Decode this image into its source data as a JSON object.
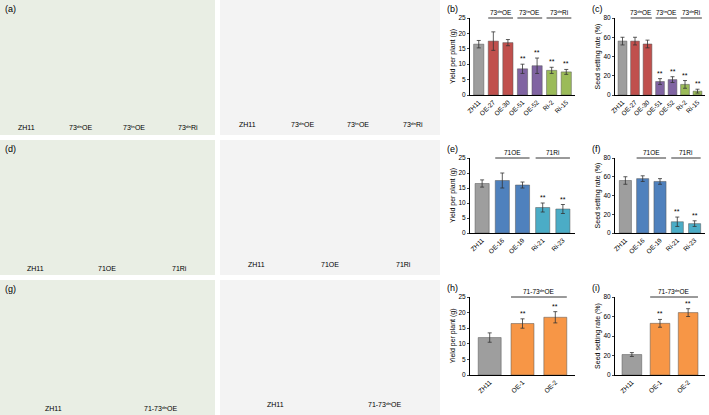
{
  "photos": [
    {
      "label": "(a)",
      "plants": [
        "ZH11",
        "73ᵈⁿOE",
        "73ᵗⁿOE",
        "73ᵈⁿRi"
      ],
      "panicles": [
        "ZH11",
        "73ᵈⁿOE",
        "73ᵗⁿOE",
        "73ᵈⁿRi"
      ]
    },
    {
      "label": "(d)",
      "plants": [
        "ZH11",
        "71OE",
        "71Ri"
      ],
      "panicles": [
        "ZH11",
        "71OE",
        "71Ri"
      ]
    },
    {
      "label": "(g)",
      "plants": [
        "ZH11",
        "71-73ᵈⁿOE"
      ],
      "panicles": [
        "ZH11",
        "71-73ᵈⁿOE"
      ]
    }
  ],
  "chart_data": [
    {
      "type": "bar",
      "panel": "(b)",
      "y_label": "Yield per plant (g)",
      "categories": [
        "ZH11",
        "OE-27",
        "OE-30",
        "OE-51",
        "OE-52",
        "Ri-2",
        "Ri-15"
      ],
      "values": [
        16.5,
        17.5,
        17,
        8.5,
        9.5,
        8,
        7.5
      ],
      "errors": [
        1.2,
        3,
        1,
        1.5,
        2.5,
        1,
        0.8
      ],
      "colors": [
        "#9e9e9e",
        "#c0504d",
        "#c0504d",
        "#8064a2",
        "#8064a2",
        "#9bbb59",
        "#9bbb59"
      ],
      "groups": [
        {
          "label": "73ᵈⁿOE",
          "from": "OE-27",
          "to": "OE-30"
        },
        {
          "label": "73ᵗⁿOE",
          "from": "OE-51",
          "to": "OE-52"
        },
        {
          "label": "73ᵈⁿRi",
          "from": "Ri-2",
          "to": "Ri-15"
        }
      ],
      "marks": [
        {
          "category": "OE-51",
          "text": "**"
        },
        {
          "category": "OE-52",
          "text": "**"
        },
        {
          "category": "Ri-2",
          "text": "**"
        },
        {
          "category": "Ri-15",
          "text": "**"
        }
      ],
      "ylim": [
        0,
        25
      ],
      "yticks": [
        0,
        5,
        10,
        15,
        20,
        25
      ]
    },
    {
      "type": "bar",
      "panel": "(c)",
      "y_label": "Seed setting rate (%)",
      "categories": [
        "ZH11",
        "OE-27",
        "OE-30",
        "OE-51",
        "OE-52",
        "Ri-2",
        "Ri-15"
      ],
      "values": [
        56,
        56,
        53,
        14,
        16,
        11,
        4
      ],
      "errors": [
        4,
        4,
        4,
        3,
        3,
        4,
        2
      ],
      "colors": [
        "#9e9e9e",
        "#c0504d",
        "#c0504d",
        "#8064a2",
        "#8064a2",
        "#9bbb59",
        "#9bbb59"
      ],
      "groups": [
        {
          "label": "73ᵈⁿOE",
          "from": "OE-27",
          "to": "OE-30"
        },
        {
          "label": "73ᵗⁿOE",
          "from": "OE-51",
          "to": "OE-52"
        },
        {
          "label": "73ᵈⁿRi",
          "from": "Ri-2",
          "to": "Ri-15"
        }
      ],
      "marks": [
        {
          "category": "OE-51",
          "text": "**"
        },
        {
          "category": "OE-52",
          "text": "**"
        },
        {
          "category": "Ri-2",
          "text": "**"
        },
        {
          "category": "Ri-15",
          "text": "**"
        }
      ],
      "ylim": [
        0,
        80
      ],
      "yticks": [
        0,
        20,
        40,
        60,
        80
      ]
    },
    {
      "type": "bar",
      "panel": "(e)",
      "y_label": "Yield per plant (g)",
      "categories": [
        "ZH11",
        "OE-16",
        "OE-19",
        "Ri-21",
        "Ri-23"
      ],
      "values": [
        16.5,
        17.5,
        16,
        8.5,
        8
      ],
      "errors": [
        1.2,
        2.5,
        1,
        1.5,
        1.5
      ],
      "colors": [
        "#9e9e9e",
        "#4f81bd",
        "#4f81bd",
        "#4bacc6",
        "#4bacc6"
      ],
      "groups": [
        {
          "label": "71OE",
          "from": "OE-16",
          "to": "OE-19"
        },
        {
          "label": "71Ri",
          "from": "Ri-21",
          "to": "Ri-23"
        }
      ],
      "marks": [
        {
          "category": "Ri-21",
          "text": "**"
        },
        {
          "category": "Ri-23",
          "text": "**"
        }
      ],
      "ylim": [
        0,
        25
      ],
      "yticks": [
        0,
        5,
        10,
        15,
        20,
        25
      ]
    },
    {
      "type": "bar",
      "panel": "(f)",
      "y_label": "Seed setting rate (%)",
      "categories": [
        "ZH11",
        "OE-16",
        "OE-19",
        "Ri-21",
        "Ri-23"
      ],
      "values": [
        56,
        58,
        55,
        12,
        10
      ],
      "errors": [
        4,
        3,
        3,
        5,
        3
      ],
      "colors": [
        "#9e9e9e",
        "#4f81bd",
        "#4f81bd",
        "#4bacc6",
        "#4bacc6"
      ],
      "groups": [
        {
          "label": "71OE",
          "from": "OE-16",
          "to": "OE-19"
        },
        {
          "label": "71Ri",
          "from": "Ri-21",
          "to": "Ri-23"
        }
      ],
      "marks": [
        {
          "category": "Ri-21",
          "text": "**"
        },
        {
          "category": "Ri-23",
          "text": "**"
        }
      ],
      "ylim": [
        0,
        80
      ],
      "yticks": [
        0,
        20,
        40,
        60,
        80
      ]
    },
    {
      "type": "bar",
      "panel": "(h)",
      "y_label": "Yield per plant (g)",
      "categories": [
        "ZH11",
        "OE-1",
        "OE-2"
      ],
      "values": [
        12,
        16.5,
        18.5
      ],
      "errors": [
        1.5,
        1.5,
        1.8
      ],
      "colors": [
        "#9e9e9e",
        "#f79646",
        "#f79646"
      ],
      "groups": [
        {
          "label": "71-73ᵈⁿOE",
          "from": "OE-1",
          "to": "OE-2"
        }
      ],
      "marks": [
        {
          "category": "OE-1",
          "text": "**"
        },
        {
          "category": "OE-2",
          "text": "**"
        }
      ],
      "ylim": [
        0,
        25
      ],
      "yticks": [
        0,
        5,
        10,
        15,
        20,
        25
      ]
    },
    {
      "type": "bar",
      "panel": "(i)",
      "y_label": "Seed setting rate (%)",
      "categories": [
        "ZH11",
        "OE-1",
        "OE-2"
      ],
      "values": [
        21,
        53,
        64
      ],
      "errors": [
        2,
        4,
        4
      ],
      "colors": [
        "#9e9e9e",
        "#f79646",
        "#f79646"
      ],
      "groups": [
        {
          "label": "71-73ᵈⁿOE",
          "from": "OE-1",
          "to": "OE-2"
        }
      ],
      "marks": [
        {
          "category": "OE-1",
          "text": "**"
        },
        {
          "category": "OE-2",
          "text": "**"
        }
      ],
      "ylim": [
        0,
        80
      ],
      "yticks": [
        0,
        20,
        40,
        60,
        80
      ]
    }
  ]
}
